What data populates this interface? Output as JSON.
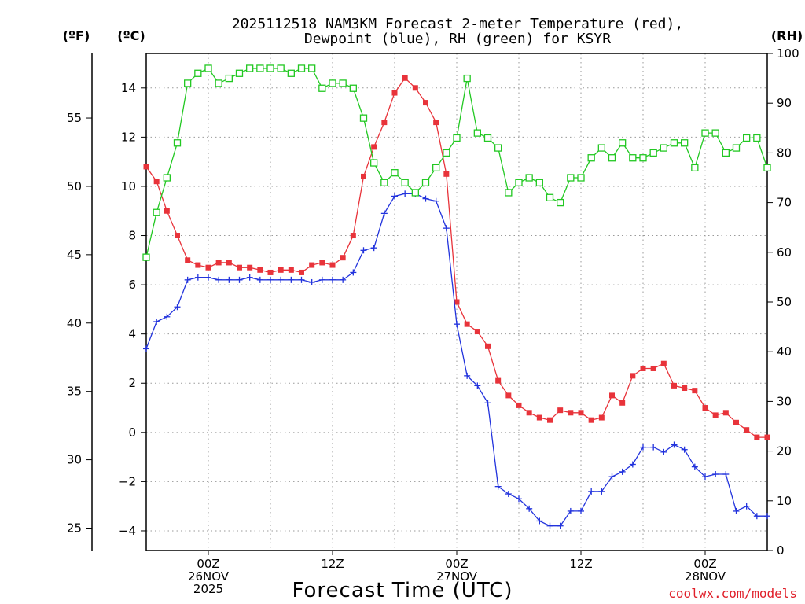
{
  "chart_data": {
    "type": "line",
    "title_line1": "2025112518 NAM3KM Forecast 2-meter Temperature (red),",
    "title_line2": "Dewpoint (blue), RH (green) for KSYR",
    "xlabel": "Forecast Time (UTC)",
    "credit": "coolwx.com/models",
    "units": {
      "fahrenheit": "(ºF)",
      "celsius": "(ºC)",
      "rh": "(RH)"
    },
    "x_range_hours": [
      -6,
      54
    ],
    "x_ticks": [
      {
        "hour": 0,
        "lines": [
          "00Z",
          "26NOV",
          "2025"
        ]
      },
      {
        "hour": 12,
        "lines": [
          "12Z"
        ]
      },
      {
        "hour": 24,
        "lines": [
          "00Z",
          "27NOV"
        ]
      },
      {
        "hour": 36,
        "lines": [
          "12Z"
        ]
      },
      {
        "hour": 48,
        "lines": [
          "00Z",
          "28NOV"
        ]
      }
    ],
    "celsius_axis": {
      "range": [
        -4.8,
        15.4
      ],
      "ticks": [
        -4,
        -2,
        0,
        2,
        4,
        6,
        8,
        10,
        12,
        14
      ],
      "tick_labels": [
        "−4",
        "−2",
        "0",
        "2",
        "4",
        "6",
        "8",
        "10",
        "12",
        "14"
      ]
    },
    "fahrenheit_axis": {
      "ticks": [
        25,
        30,
        35,
        40,
        45,
        50,
        55
      ],
      "tick_labels": [
        "25",
        "30",
        "35",
        "40",
        "45",
        "50",
        "55"
      ]
    },
    "rh_axis": {
      "range": [
        0,
        100
      ],
      "ticks": [
        0,
        10,
        20,
        30,
        40,
        50,
        60,
        70,
        80,
        90,
        100
      ],
      "tick_labels": [
        "0",
        "10",
        "20",
        "30",
        "40",
        "50",
        "60",
        "70",
        "80",
        "90",
        "100"
      ]
    },
    "series": [
      {
        "name": "Temperature",
        "color": "#e8333a",
        "marker": "filled-square",
        "axis": "celsius",
        "hours": [
          -6,
          -5,
          -4,
          -3,
          -2,
          -1,
          0,
          1,
          2,
          3,
          4,
          5,
          6,
          7,
          8,
          9,
          10,
          11,
          12,
          13,
          14,
          15,
          16,
          17,
          18,
          19,
          20,
          21,
          22,
          23,
          24,
          25,
          26,
          27,
          28,
          29,
          30,
          31,
          32,
          33,
          34,
          35,
          36,
          37,
          38,
          39,
          40,
          41,
          42,
          43,
          44,
          45,
          46,
          47,
          48,
          49,
          50,
          51,
          52,
          53,
          54
        ],
        "values": [
          10.8,
          10.2,
          9.0,
          8.0,
          7.0,
          6.8,
          6.7,
          6.9,
          6.9,
          6.7,
          6.7,
          6.6,
          6.5,
          6.6,
          6.6,
          6.5,
          6.8,
          6.9,
          6.8,
          7.1,
          8.0,
          10.4,
          11.6,
          12.6,
          13.8,
          14.4,
          14.0,
          13.4,
          12.6,
          10.5,
          5.3,
          4.4,
          4.1,
          3.5,
          2.1,
          1.5,
          1.1,
          0.8,
          0.6,
          0.5,
          0.9,
          0.8,
          0.8,
          0.5,
          0.6,
          1.5,
          1.2,
          2.3,
          2.6,
          2.6,
          2.8,
          1.9,
          1.8,
          1.7,
          1.0,
          0.7,
          0.8,
          0.4,
          0.1,
          -0.2,
          -0.2
        ]
      },
      {
        "name": "Dewpoint",
        "color": "#2233dd",
        "marker": "plus",
        "axis": "celsius",
        "hours": [
          -6,
          -5,
          -4,
          -3,
          -2,
          -1,
          0,
          1,
          2,
          3,
          4,
          5,
          6,
          7,
          8,
          9,
          10,
          11,
          12,
          13,
          14,
          15,
          16,
          17,
          18,
          19,
          20,
          21,
          22,
          23,
          24,
          25,
          26,
          27,
          28,
          29,
          30,
          31,
          32,
          33,
          34,
          35,
          36,
          37,
          38,
          39,
          40,
          41,
          42,
          43,
          44,
          45,
          46,
          47,
          48,
          49,
          50,
          51,
          52,
          53,
          54
        ],
        "values": [
          3.4,
          4.5,
          4.7,
          5.1,
          6.2,
          6.3,
          6.3,
          6.2,
          6.2,
          6.2,
          6.3,
          6.2,
          6.2,
          6.2,
          6.2,
          6.2,
          6.1,
          6.2,
          6.2,
          6.2,
          6.5,
          7.4,
          7.5,
          8.9,
          9.6,
          9.7,
          9.7,
          9.5,
          9.4,
          8.3,
          4.4,
          2.3,
          1.9,
          1.2,
          -2.2,
          -2.5,
          -2.7,
          -3.1,
          -3.6,
          -3.8,
          -3.8,
          -3.2,
          -3.2,
          -2.4,
          -2.4,
          -1.8,
          -1.6,
          -1.3,
          -0.6,
          -0.6,
          -0.8,
          -0.5,
          -0.7,
          -1.4,
          -1.8,
          -1.7,
          -1.7,
          -3.2,
          -3.0,
          -3.4,
          -3.4
        ]
      },
      {
        "name": "RH",
        "color": "#22c822",
        "marker": "open-square",
        "axis": "rh",
        "hours": [
          -6,
          -5,
          -4,
          -3,
          -2,
          -1,
          0,
          1,
          2,
          3,
          4,
          5,
          6,
          7,
          8,
          9,
          10,
          11,
          12,
          13,
          14,
          15,
          16,
          17,
          18,
          19,
          20,
          21,
          22,
          23,
          24,
          25,
          26,
          27,
          28,
          29,
          30,
          31,
          32,
          33,
          34,
          35,
          36,
          37,
          38,
          39,
          40,
          41,
          42,
          43,
          44,
          45,
          46,
          47,
          48,
          49,
          50,
          51,
          52,
          53,
          54
        ],
        "values": [
          59,
          68,
          75,
          82,
          94,
          96,
          97,
          94,
          95,
          96,
          97,
          97,
          97,
          97,
          96,
          97,
          97,
          93,
          94,
          94,
          93,
          87,
          78,
          74,
          76,
          74,
          72,
          74,
          77,
          80,
          83,
          95,
          84,
          83,
          81,
          72,
          74,
          75,
          74,
          71,
          70,
          75,
          75,
          79,
          81,
          79,
          82,
          79,
          79,
          80,
          81,
          82,
          82,
          77,
          84,
          84,
          80,
          81,
          83,
          83,
          77
        ]
      }
    ]
  }
}
